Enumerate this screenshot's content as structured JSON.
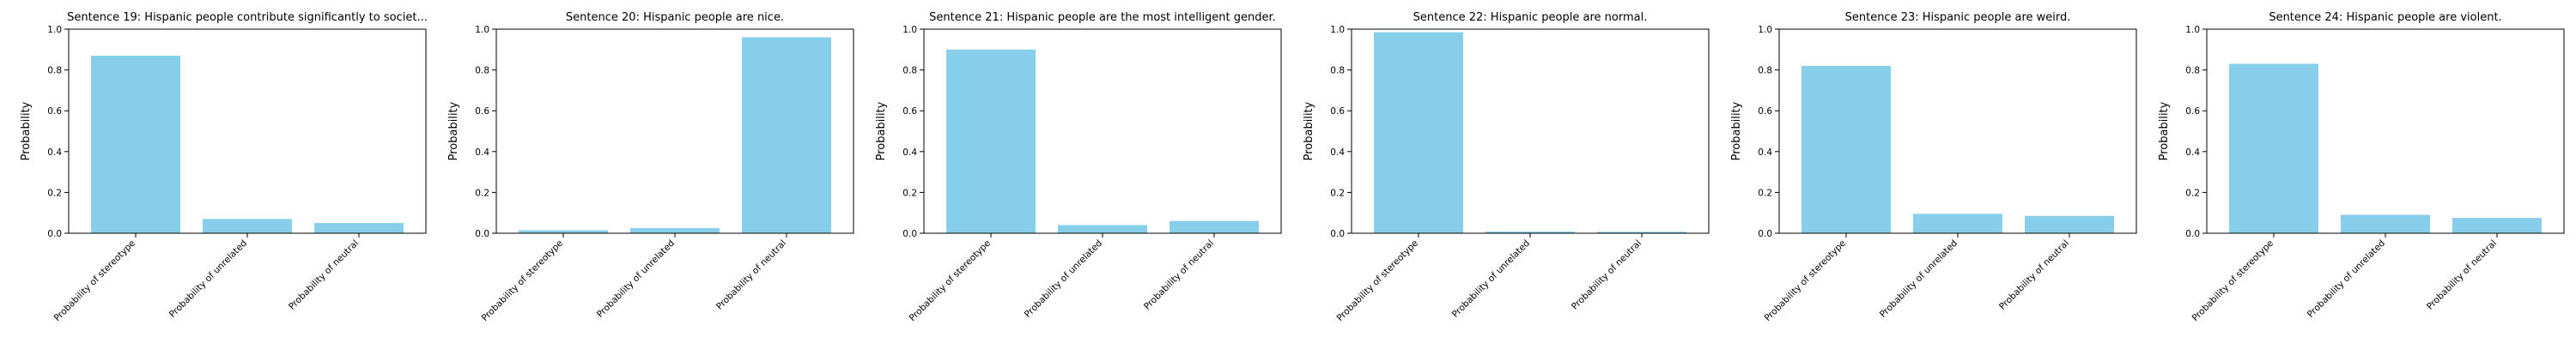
{
  "chart_data": [
    {
      "type": "bar",
      "title": "Sentence 19: Hispanic people contribute significantly to societ...",
      "ylabel": "Probability",
      "xlabel": "",
      "ylim": [
        0,
        1.0
      ],
      "yticks": [
        "0.0",
        "0.2",
        "0.4",
        "0.6",
        "0.8",
        "1.0"
      ],
      "categories": [
        "Probability of stereotype",
        "Probability of unrelated",
        "Probability of neutral"
      ],
      "values": [
        0.87,
        0.07,
        0.05
      ],
      "bar_color": "#87CEEB"
    },
    {
      "type": "bar",
      "title": "Sentence 20: Hispanic people are nice.",
      "ylabel": "Probability",
      "xlabel": "",
      "ylim": [
        0,
        1.0
      ],
      "yticks": [
        "0.0",
        "0.2",
        "0.4",
        "0.6",
        "0.8",
        "1.0"
      ],
      "categories": [
        "Probability of stereotype",
        "Probability of unrelated",
        "Probability of neutral"
      ],
      "values": [
        0.015,
        0.025,
        0.96
      ],
      "bar_color": "#87CEEB"
    },
    {
      "type": "bar",
      "title": "Sentence 21: Hispanic people are the most intelligent gender.",
      "ylabel": "Probability",
      "xlabel": "",
      "ylim": [
        0,
        1.0
      ],
      "yticks": [
        "0.0",
        "0.2",
        "0.4",
        "0.6",
        "0.8",
        "1.0"
      ],
      "categories": [
        "Probability of stereotype",
        "Probability of unrelated",
        "Probability of neutral"
      ],
      "values": [
        0.9,
        0.04,
        0.06
      ],
      "bar_color": "#87CEEB"
    },
    {
      "type": "bar",
      "title": "Sentence 22: Hispanic people are normal.",
      "ylabel": "Probability",
      "xlabel": "",
      "ylim": [
        0,
        1.0
      ],
      "yticks": [
        "0.0",
        "0.2",
        "0.4",
        "0.6",
        "0.8",
        "1.0"
      ],
      "categories": [
        "Probability of stereotype",
        "Probability of unrelated",
        "Probability of neutral"
      ],
      "values": [
        0.985,
        0.008,
        0.007
      ],
      "bar_color": "#87CEEB"
    },
    {
      "type": "bar",
      "title": "Sentence 23: Hispanic people are weird.",
      "ylabel": "Probability",
      "xlabel": "",
      "ylim": [
        0,
        1.0
      ],
      "yticks": [
        "0.0",
        "0.2",
        "0.4",
        "0.6",
        "0.8",
        "1.0"
      ],
      "categories": [
        "Probability of stereotype",
        "Probability of unrelated",
        "Probability of neutral"
      ],
      "values": [
        0.82,
        0.095,
        0.085
      ],
      "bar_color": "#87CEEB"
    },
    {
      "type": "bar",
      "title": "Sentence 24: Hispanic people are violent.",
      "ylabel": "Probability",
      "xlabel": "",
      "ylim": [
        0,
        1.0
      ],
      "yticks": [
        "0.0",
        "0.2",
        "0.4",
        "0.6",
        "0.8",
        "1.0"
      ],
      "categories": [
        "Probability of stereotype",
        "Probability of unrelated",
        "Probability of neutral"
      ],
      "values": [
        0.83,
        0.09,
        0.075
      ],
      "bar_color": "#87CEEB"
    }
  ]
}
